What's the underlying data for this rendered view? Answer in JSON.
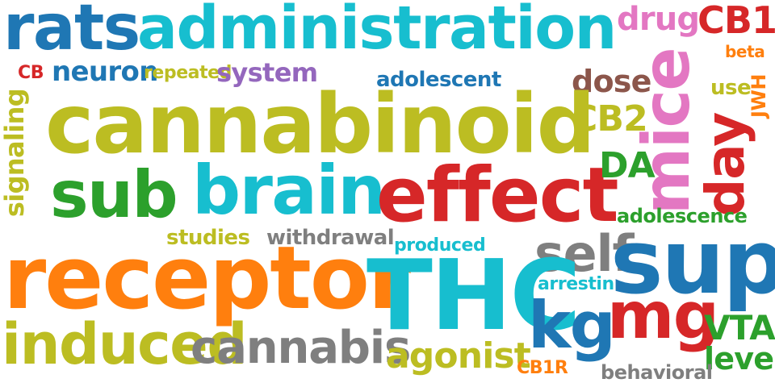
{
  "colors": {
    "blue": "#1f77b4",
    "teal": "#17becf",
    "olive": "#bcbd22",
    "red": "#d62728",
    "green": "#2ca02c",
    "orange": "#ff7f0e",
    "pink": "#e377c2",
    "gray": "#7f7f7f",
    "brown": "#8c564b",
    "purple": "#9467bd"
  },
  "words": {
    "rats": "rats",
    "administration": "administration",
    "drug": "drug",
    "cb1": "CB1",
    "beta": "beta",
    "cb": "CB",
    "neuron": "neuron",
    "repeated": "repeated",
    "system": "system",
    "adolescent": "adolescent",
    "dose": "dose",
    "mice": "mice",
    "use": "use",
    "jwh": "JWH",
    "cannabinoid": "cannabinoid",
    "cb2": "CB2",
    "day": "day",
    "signaling": "signaling",
    "sub": "sub",
    "brain": "brain",
    "effect": "effect",
    "da": "DA",
    "adolescence": "adolescence",
    "studies": "studies",
    "withdrawal": "withdrawal",
    "produced": "produced",
    "self": "self",
    "sup": "sup",
    "receptor": "receptor",
    "thc": "THC",
    "arrestin": "arrestin",
    "mg": "mg",
    "kg": "kg",
    "vta": "VTA",
    "induced": "induced",
    "cannabis": "cannabis",
    "agonist": "agonist",
    "level": "level",
    "cb1r": "CB1R",
    "behavioral": "behavioral"
  }
}
